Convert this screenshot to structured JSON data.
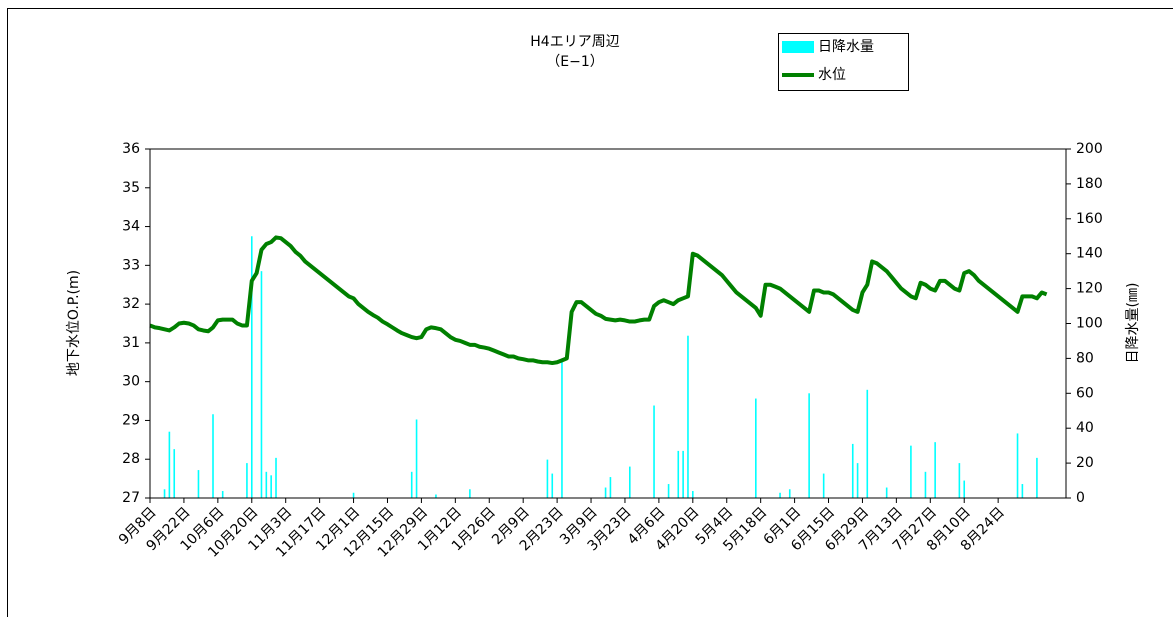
{
  "chart_data": {
    "type": "combo",
    "title": "H4エリア周辺",
    "subtitle": "（E−1）",
    "y_label": "地下水位O.P.(m)",
    "y2_label": "日降水量(㎜)",
    "categories": [
      "9月8日",
      null,
      null,
      null,
      null,
      null,
      null,
      "9月22日",
      null,
      null,
      null,
      null,
      null,
      null,
      "10月6日",
      null,
      null,
      null,
      null,
      null,
      null,
      "10月20日",
      null,
      null,
      null,
      null,
      null,
      null,
      "11月3日",
      null,
      null,
      null,
      null,
      null,
      null,
      "11月17日",
      null,
      null,
      null,
      null,
      null,
      null,
      "12月1日",
      null,
      null,
      null,
      null,
      null,
      null,
      "12月15日",
      null,
      null,
      null,
      null,
      null,
      null,
      "12月29日",
      null,
      null,
      null,
      null,
      null,
      null,
      "1月12日",
      null,
      null,
      null,
      null,
      null,
      null,
      "1月26日",
      null,
      null,
      null,
      null,
      null,
      null,
      "2月9日",
      null,
      null,
      null,
      null,
      null,
      null,
      "2月23日",
      null,
      null,
      null,
      null,
      null,
      null,
      "3月9日",
      null,
      null,
      null,
      null,
      null,
      null,
      "3月23日",
      null,
      null,
      null,
      null,
      null,
      null,
      "4月6日",
      null,
      null,
      null,
      null,
      null,
      null,
      "4月20日",
      null,
      null,
      null,
      null,
      null,
      null,
      "5月4日",
      null,
      null,
      null,
      null,
      null,
      null,
      "5月18日",
      null,
      null,
      null,
      null,
      null,
      null,
      "6月1日",
      null,
      null,
      null,
      null,
      null,
      null,
      "6月15日",
      null,
      null,
      null,
      null,
      null,
      null,
      "6月29日",
      null,
      null,
      null,
      null,
      null,
      null,
      "7月13日",
      null,
      null,
      null,
      null,
      null,
      null,
      "7月27日",
      null,
      null,
      null,
      null,
      null,
      null,
      "8月10日",
      null,
      null,
      null,
      null,
      null,
      null,
      "8月24日",
      null,
      null,
      null,
      null,
      null,
      null,
      null,
      null,
      null,
      null,
      null,
      null,
      null
    ],
    "series": [
      {
        "name": "日降水量",
        "type": "bar",
        "axis": "y2",
        "color": "#00ffff",
        "values": [
          0,
          0,
          0,
          5,
          38,
          28,
          0,
          0,
          0,
          0,
          16,
          0,
          0,
          48,
          0,
          4,
          0,
          0,
          0,
          0,
          20,
          150,
          0,
          130,
          15,
          13,
          23,
          0,
          0,
          0,
          0,
          0,
          0,
          0,
          0,
          0,
          0,
          0,
          0,
          0,
          0,
          0,
          3,
          0,
          0,
          0,
          0,
          0,
          0,
          0,
          0,
          0,
          0,
          0,
          15,
          45,
          0,
          0,
          0,
          2,
          0,
          0,
          0,
          0,
          0,
          0,
          5,
          0,
          0,
          0,
          0,
          0,
          0,
          0,
          0,
          0,
          0,
          0,
          0,
          0,
          0,
          0,
          22,
          14,
          0,
          80,
          0,
          0,
          0,
          0,
          0,
          0,
          0,
          0,
          6,
          12,
          0,
          0,
          0,
          18,
          0,
          0,
          0,
          0,
          53,
          0,
          0,
          8,
          0,
          27,
          27,
          93,
          4,
          0,
          0,
          0,
          0,
          0,
          0,
          0,
          0,
          0,
          0,
          0,
          0,
          57,
          0,
          0,
          0,
          0,
          3,
          0,
          5,
          0,
          0,
          0,
          60,
          0,
          0,
          14,
          0,
          0,
          0,
          0,
          0,
          31,
          20,
          0,
          62,
          0,
          0,
          0,
          6,
          0,
          0,
          0,
          0,
          30,
          0,
          0,
          15,
          0,
          32,
          0,
          0,
          0,
          0,
          20,
          10,
          0,
          0,
          0,
          0,
          0,
          0,
          0,
          0,
          0,
          0,
          37,
          8,
          0,
          0,
          23,
          0,
          0,
          0,
          0,
          0
        ]
      },
      {
        "name": "水位",
        "type": "line",
        "color": "#008000",
        "values": [
          31.45,
          31.4,
          31.38,
          31.35,
          31.32,
          31.4,
          31.5,
          31.52,
          31.5,
          31.45,
          31.35,
          31.32,
          31.3,
          31.4,
          31.58,
          31.6,
          31.6,
          31.6,
          31.5,
          31.45,
          31.45,
          32.6,
          32.8,
          33.4,
          33.55,
          33.6,
          33.72,
          33.7,
          33.6,
          33.5,
          33.35,
          33.25,
          33.1,
          33.0,
          32.9,
          32.8,
          32.7,
          32.6,
          32.5,
          32.4,
          32.3,
          32.2,
          32.15,
          32.0,
          31.9,
          31.8,
          31.72,
          31.65,
          31.55,
          31.48,
          31.4,
          31.32,
          31.25,
          31.2,
          31.15,
          31.12,
          31.15,
          31.35,
          31.4,
          31.38,
          31.35,
          31.25,
          31.15,
          31.08,
          31.05,
          31.0,
          30.95,
          30.95,
          30.9,
          30.88,
          30.85,
          30.8,
          30.75,
          30.7,
          30.65,
          30.65,
          30.6,
          30.58,
          30.55,
          30.55,
          30.52,
          30.5,
          30.5,
          30.48,
          30.5,
          30.55,
          30.6,
          31.8,
          32.05,
          32.05,
          31.95,
          31.85,
          31.75,
          31.7,
          31.62,
          31.6,
          31.58,
          31.6,
          31.58,
          31.55,
          31.55,
          31.58,
          31.6,
          31.6,
          31.95,
          32.05,
          32.1,
          32.05,
          32.0,
          32.1,
          32.15,
          32.2,
          33.3,
          33.25,
          33.15,
          33.05,
          32.95,
          32.85,
          32.75,
          32.6,
          32.45,
          32.3,
          32.2,
          32.1,
          32.0,
          31.9,
          31.7,
          32.5,
          32.5,
          32.45,
          32.4,
          32.3,
          32.2,
          32.1,
          32.0,
          31.9,
          31.8,
          32.35,
          32.35,
          32.3,
          32.3,
          32.25,
          32.15,
          32.05,
          31.95,
          31.85,
          31.8,
          32.3,
          32.5,
          33.1,
          33.05,
          32.95,
          32.85,
          32.7,
          32.55,
          32.4,
          32.3,
          32.2,
          32.15,
          32.55,
          32.5,
          32.4,
          32.35,
          32.6,
          32.6,
          32.5,
          32.4,
          32.35,
          32.8,
          32.85,
          32.75,
          32.6,
          32.5,
          32.4,
          32.3,
          32.2,
          32.1,
          32.0,
          31.9,
          31.8,
          32.2,
          32.2,
          32.2,
          32.15,
          32.3,
          32.25,
          null,
          null,
          null
        ]
      }
    ],
    "ylim": [
      27,
      36
    ],
    "yticks": [
      27,
      28,
      29,
      30,
      31,
      32,
      33,
      34,
      35,
      36
    ],
    "y2lim": [
      0,
      200
    ],
    "y2ticks": [
      0,
      20,
      40,
      60,
      80,
      100,
      120,
      140,
      160,
      180,
      200
    ],
    "legend": "top-right"
  }
}
